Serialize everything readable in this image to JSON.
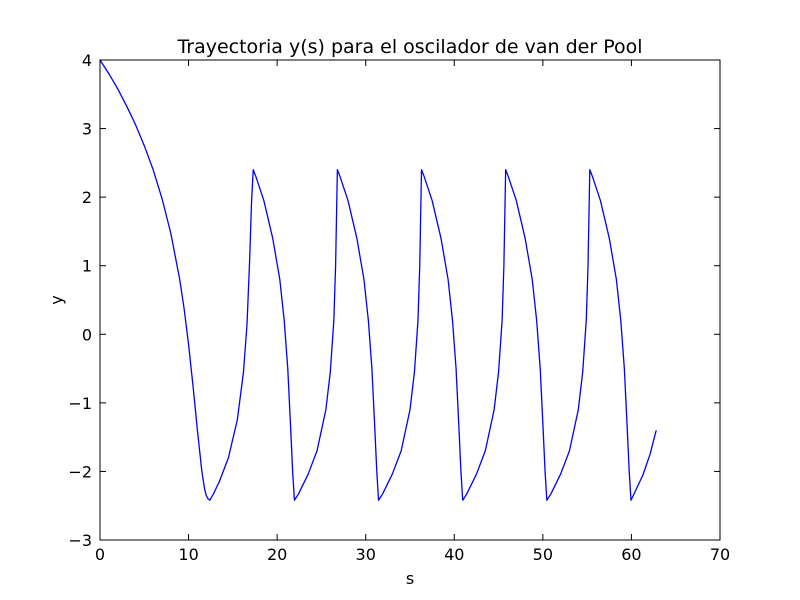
{
  "chart_data": {
    "type": "line",
    "title": "Trayectoria y(s) para el oscilador de van der Pool",
    "xlabel": "s",
    "ylabel": "y",
    "xlim": [
      0,
      70
    ],
    "ylim": [
      -3,
      4
    ],
    "x_ticks": [
      0,
      10,
      20,
      30,
      40,
      50,
      60,
      70
    ],
    "y_ticks": [
      -3,
      -2,
      -1,
      0,
      1,
      2,
      3,
      4
    ],
    "x_tick_labels": [
      "0",
      "10",
      "20",
      "30",
      "40",
      "50",
      "60",
      "70"
    ],
    "y_tick_labels": [
      "−3",
      "−2",
      "−1",
      "0",
      "1",
      "2",
      "3",
      "4"
    ],
    "grid": false,
    "series": [
      {
        "color": "#0000ff",
        "x": [
          0,
          1,
          2,
          3,
          4,
          5,
          6,
          7,
          8,
          9,
          9.5,
          10,
          10.5,
          11,
          11.5,
          11.8,
          12.0,
          12.2,
          12.4,
          12.8,
          13.5,
          14.5,
          15.5,
          16.2,
          16.6,
          16.9,
          17.1,
          17.3,
          17.6,
          18.5,
          19.5,
          20.3,
          20.8,
          21.2,
          21.5,
          21.75,
          21.95,
          22.4,
          23.5,
          24.5,
          25.5,
          26.0,
          26.4,
          26.6,
          26.8,
          27.1,
          28.0,
          29.0,
          29.8,
          30.3,
          30.7,
          31.0,
          31.25,
          31.45,
          31.9,
          33.0,
          34.0,
          35.0,
          35.5,
          35.9,
          36.1,
          36.3,
          36.6,
          37.5,
          38.5,
          39.3,
          39.8,
          40.2,
          40.5,
          40.75,
          40.95,
          41.4,
          42.5,
          43.5,
          44.5,
          45.0,
          45.4,
          45.6,
          45.8,
          46.1,
          47.0,
          48.0,
          48.8,
          49.3,
          49.7,
          50.0,
          50.25,
          50.45,
          50.9,
          52.0,
          53.0,
          54.0,
          54.5,
          54.9,
          55.1,
          55.3,
          55.6,
          56.5,
          57.5,
          58.3,
          58.8,
          59.2,
          59.5,
          59.75,
          59.95,
          60.4,
          61.3,
          62.1,
          62.8
        ],
        "y": [
          4.0,
          3.8,
          3.58,
          3.33,
          3.06,
          2.75,
          2.4,
          1.98,
          1.47,
          0.8,
          0.37,
          -0.15,
          -0.75,
          -1.4,
          -2.0,
          -2.25,
          -2.35,
          -2.4,
          -2.42,
          -2.33,
          -2.14,
          -1.8,
          -1.25,
          -0.55,
          0.15,
          1.1,
          1.9,
          2.4,
          2.3,
          1.95,
          1.4,
          0.8,
          0.2,
          -0.5,
          -1.3,
          -2.0,
          -2.42,
          -2.33,
          -2.04,
          -1.7,
          -1.1,
          -0.55,
          0.2,
          1.0,
          2.4,
          2.3,
          1.95,
          1.4,
          0.8,
          0.2,
          -0.5,
          -1.3,
          -2.0,
          -2.42,
          -2.33,
          -2.04,
          -1.7,
          -1.1,
          -0.55,
          0.2,
          1.0,
          2.4,
          2.3,
          1.95,
          1.4,
          0.8,
          0.2,
          -0.5,
          -1.3,
          -2.0,
          -2.42,
          -2.33,
          -2.04,
          -1.7,
          -1.1,
          -0.55,
          0.2,
          1.0,
          2.4,
          2.3,
          1.95,
          1.4,
          0.8,
          0.2,
          -0.5,
          -1.3,
          -2.0,
          -2.42,
          -2.33,
          -2.04,
          -1.7,
          -1.1,
          -0.55,
          0.2,
          1.0,
          2.4,
          2.3,
          1.95,
          1.4,
          0.8,
          0.2,
          -0.5,
          -1.3,
          -2.0,
          -2.42,
          -2.3,
          -2.05,
          -1.75,
          -1.4
        ]
      }
    ]
  }
}
